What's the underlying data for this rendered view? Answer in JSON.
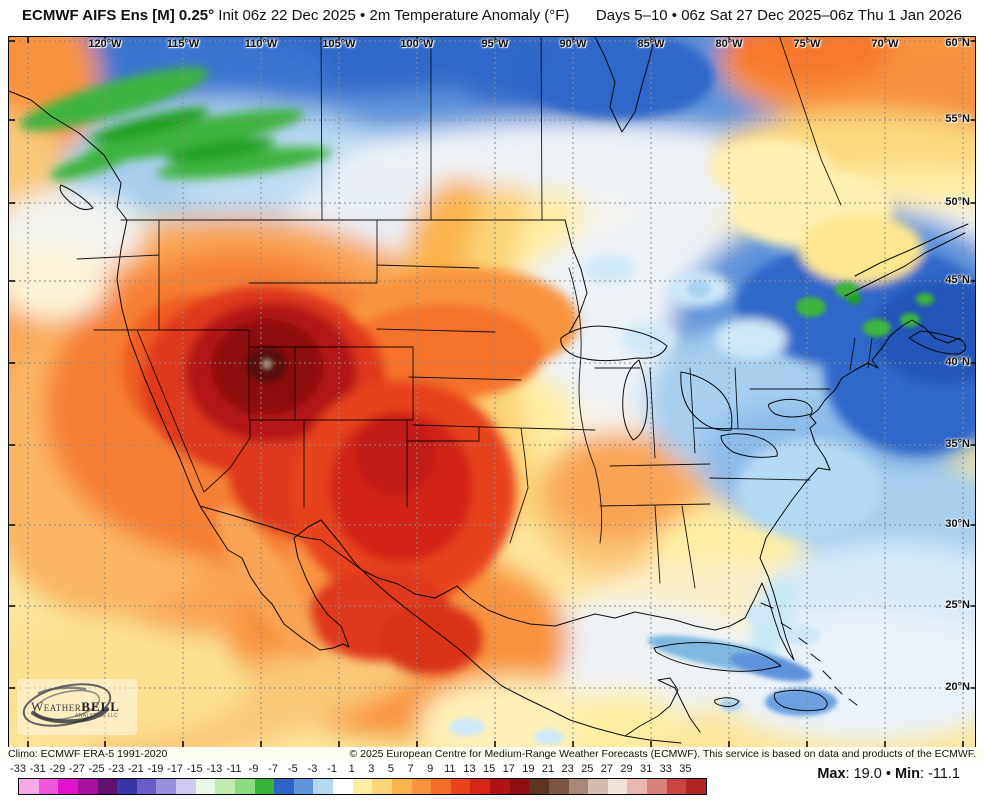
{
  "header": {
    "title_model": "ECMWF AIFS Ens [M] 0.25°",
    "title_desc": " Init 06z 22 Dec 2025 • 2m Temperature Anomaly (°F)",
    "valid_range": "Days 5–10 • 06z Sat 27 Dec 2025–06z Thu 1 Jan 2026"
  },
  "map": {
    "lon_labels": [
      "120°W",
      "115°W",
      "110°W",
      "105°W",
      "100°W",
      "95°W",
      "90°W",
      "85°W",
      "80°W",
      "75°W",
      "70°W"
    ],
    "lat_labels": [
      "60°N",
      "55°N",
      "50°N",
      "45°N",
      "40°N",
      "35°N",
      "30°N",
      "25°N",
      "20°N"
    ],
    "logo": {
      "brand_weather": "Weather",
      "brand_bell": "BELL",
      "brand_sub": "ANALYTICS LLC"
    }
  },
  "footer": {
    "climo": "Climo: ECMWF ERA-5 1991-2020",
    "copyright": "© 2025 European Centre for Medium-Range Weather Forecasts (ECMWF). This service is based on data and products of the ECMWF."
  },
  "colorbar": {
    "unit": "°F",
    "tick_labels": [
      "-33",
      "-31",
      "-29",
      "-27",
      "-25",
      "-23",
      "-21",
      "-19",
      "-17",
      "-15",
      "-13",
      "-11",
      "-9",
      "-7",
      "-5",
      "-3",
      "-1",
      "1",
      "3",
      "5",
      "7",
      "9",
      "11",
      "13",
      "15",
      "17",
      "19",
      "21",
      "23",
      "25",
      "27",
      "29",
      "31",
      "33",
      "35"
    ],
    "segment_colors": [
      "#f6a9e6",
      "#ef58da",
      "#e013cc",
      "#a910a0",
      "#5f1170",
      "#3c35a8",
      "#675cc8",
      "#9a90e0",
      "#d0caf0",
      "#eaf7e6",
      "#c0ecb4",
      "#8cdb80",
      "#37b437",
      "#2b63c8",
      "#5f93dc",
      "#b5d9f2",
      "#ffffff",
      "#fdeea2",
      "#fcd377",
      "#fbb34e",
      "#f89440",
      "#f56b28",
      "#e8431a",
      "#d62616",
      "#b01313",
      "#8f0f10",
      "#5e3423",
      "#7d5544",
      "#a98778",
      "#d4bcb0",
      "#f2e2dc",
      "#e9b6b1",
      "#da817e",
      "#c84543",
      "#b02622"
    ]
  },
  "stats": {
    "max_label": "Max",
    "max_value": "19.0",
    "separator": "•",
    "min_label": "Min",
    "min_value": "-11.1"
  }
}
